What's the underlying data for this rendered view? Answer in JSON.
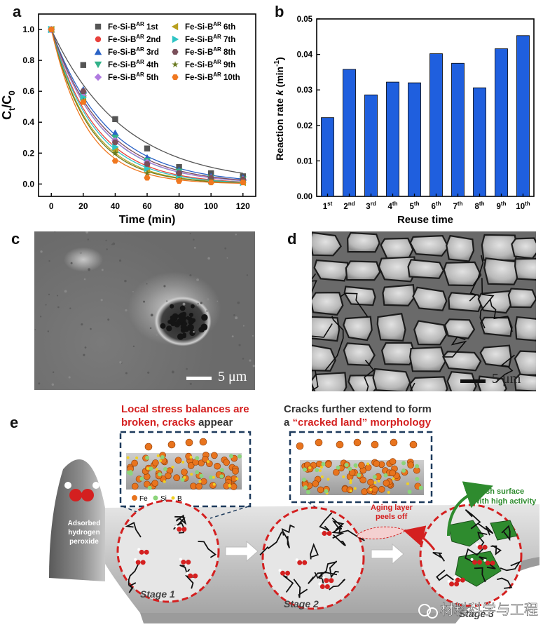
{
  "panels": {
    "a": "a",
    "b": "b",
    "c": "c",
    "d": "d",
    "e": "e"
  },
  "chart_data": [
    {
      "type": "scatter",
      "panel": "a",
      "xlabel": "Time (min)",
      "ylabel": "Ct/C0",
      "ylabel_main": "C",
      "ylabel_sub1": "t",
      "ylabel_sep": "/C",
      "ylabel_sub2": "0",
      "xlim": [
        -8,
        128
      ],
      "ylim": [
        -0.08,
        1.1
      ],
      "x_ticks": [
        "0",
        "20",
        "40",
        "60",
        "80",
        "100",
        "120"
      ],
      "x_tick_values": [
        0,
        20,
        40,
        60,
        80,
        100,
        120
      ],
      "y_ticks": [
        "0.0",
        "0.2",
        "0.4",
        "0.6",
        "0.8",
        "1.0"
      ],
      "y_tick_values": [
        0.0,
        0.2,
        0.4,
        0.6,
        0.8,
        1.0
      ],
      "legend_prefix": "Fe-Si-B",
      "legend_sup": "AR",
      "legend_placement": "top-right",
      "x": [
        0,
        20,
        40,
        60,
        80,
        100,
        120
      ],
      "series": [
        {
          "name": "1st",
          "color": "#555555",
          "marker": "square",
          "values": [
            1.0,
            0.77,
            0.42,
            0.23,
            0.11,
            0.07,
            0.05
          ],
          "k": 0.0222
        },
        {
          "name": "2nd",
          "color": "#e8413c",
          "marker": "circle",
          "values": [
            1.0,
            0.59,
            0.28,
            0.12,
            0.06,
            0.03,
            0.02
          ],
          "k": 0.0358
        },
        {
          "name": "3rd",
          "color": "#2b63c6",
          "marker": "triangle-up",
          "values": [
            1.0,
            0.61,
            0.33,
            0.17,
            0.09,
            0.05,
            0.04
          ],
          "k": 0.0286
        },
        {
          "name": "4th",
          "color": "#33b28a",
          "marker": "triangle-down",
          "values": [
            1.0,
            0.57,
            0.3,
            0.15,
            0.08,
            0.04,
            0.03
          ],
          "k": 0.0322
        },
        {
          "name": "5th",
          "color": "#b07be0",
          "marker": "diamond",
          "values": [
            1.0,
            0.57,
            0.28,
            0.14,
            0.07,
            0.04,
            0.03
          ],
          "k": 0.032
        },
        {
          "name": "6th",
          "color": "#b8a020",
          "marker": "triangle-left",
          "values": [
            1.0,
            0.55,
            0.22,
            0.09,
            0.05,
            0.02,
            0.01
          ],
          "k": 0.0402
        },
        {
          "name": "7th",
          "color": "#2ec4c4",
          "marker": "triangle-right",
          "values": [
            1.0,
            0.56,
            0.24,
            0.1,
            0.05,
            0.02,
            0.01
          ],
          "k": 0.0375
        },
        {
          "name": "8th",
          "color": "#7a4f5a",
          "marker": "hexagon",
          "values": [
            1.0,
            0.6,
            0.27,
            0.13,
            0.07,
            0.04,
            0.03
          ],
          "k": 0.0306
        },
        {
          "name": "9th",
          "color": "#6a7a20",
          "marker": "star",
          "values": [
            1.0,
            0.54,
            0.2,
            0.07,
            0.03,
            0.02,
            0.01
          ],
          "k": 0.0416
        },
        {
          "name": "10th",
          "color": "#f07820",
          "marker": "hexagon-fill",
          "values": [
            1.0,
            0.53,
            0.15,
            0.04,
            0.02,
            0.01,
            0.01
          ],
          "k": 0.0453
        }
      ]
    },
    {
      "type": "bar",
      "panel": "b",
      "xlabel": "Reuse time",
      "ylabel": "Reaction rate k (min-1)",
      "ylabel_parts": [
        "Reaction rate ",
        "k",
        " (min",
        "-1",
        ")"
      ],
      "ylim": [
        0,
        0.05
      ],
      "y_ticks": [
        "0.00",
        "0.01",
        "0.02",
        "0.03",
        "0.04",
        "0.05"
      ],
      "y_tick_values": [
        0,
        0.01,
        0.02,
        0.03,
        0.04,
        0.05
      ],
      "categories": [
        "1",
        "2",
        "3",
        "4",
        "5",
        "6",
        "7",
        "8",
        "9",
        "10"
      ],
      "category_sups": [
        "st",
        "nd",
        "rd",
        "th",
        "th",
        "th",
        "th",
        "th",
        "th",
        "th"
      ],
      "values": [
        0.0222,
        0.0358,
        0.0286,
        0.0322,
        0.032,
        0.0402,
        0.0375,
        0.0306,
        0.0416,
        0.0453
      ],
      "bar_color": "#1f5fde"
    }
  ],
  "sem_c": {
    "scale_label": "5 μm"
  },
  "sem_d": {
    "scale_label": "5 μm"
  },
  "schematic": {
    "caption1_line1": "Local stress balances are",
    "caption1_line2_a": "broken, ",
    "caption1_line2_b": "cracks",
    "caption1_line2_c": " appear",
    "caption2_line1": "Cracks further extend to form",
    "caption2_line2_a": "a ",
    "caption2_line2_b": "“cracked land”",
    "caption2_line2_c": " morphology",
    "legend_fe": "Fe",
    "legend_si": "Si",
    "legend_b": "B",
    "adsorbed_1": "Adsorbed",
    "adsorbed_2": "hydrogen",
    "adsorbed_3": "peroxide",
    "aging_1": "Aging layer",
    "aging_2": "peels off",
    "fresh_1": "Fresh surface",
    "fresh_2": "with high activity",
    "stage1": "Stage 1",
    "stage2": "Stage 2",
    "stage3": "Stage 3",
    "watermark": "材料科学与工程",
    "colors": {
      "red": "#d42020",
      "green": "#2e8b2e",
      "fe": "#e8741e",
      "si": "#8cd47a",
      "b": "#f0d020",
      "steel": "#8a8a8a"
    }
  }
}
